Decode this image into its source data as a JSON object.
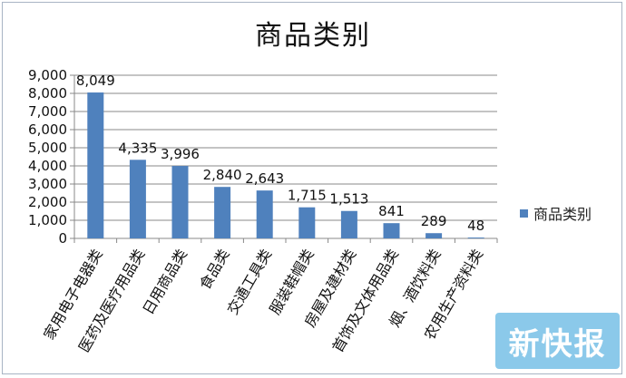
{
  "chart_data": {
    "type": "bar",
    "title": "商品类别",
    "categories": [
      "家用电子电器类",
      "医药及医疗用品类",
      "日用商品类",
      "食品类",
      "交通工具类",
      "服装鞋帽类",
      "房屋及建材类",
      "首饰及文体用品类",
      "烟、酒饮料类",
      "农用生产资料类"
    ],
    "series": [
      {
        "name": "商品类别",
        "values": [
          8049,
          4335,
          3996,
          2840,
          2643,
          1715,
          1513,
          841,
          289,
          48
        ],
        "labels": [
          "8,049",
          "4,335",
          "3,996",
          "2,840",
          "2,643",
          "1,715",
          "1,513",
          "841",
          "289",
          "48"
        ]
      }
    ],
    "ylim": [
      0,
      9000
    ],
    "yticks": [
      0,
      1000,
      2000,
      3000,
      4000,
      5000,
      6000,
      7000,
      8000,
      9000
    ],
    "ytick_labels": [
      "0",
      "1,000",
      "2,000",
      "3,000",
      "4,000",
      "5,000",
      "6,000",
      "7,000",
      "8,000",
      "9,000"
    ],
    "grid": true,
    "legend_position": "right",
    "colors": {
      "bar": "#4f81bd",
      "grid": "#888888",
      "axis": "#888888"
    }
  },
  "watermark": {
    "text": "新快报",
    "color": "#8bc9ea"
  }
}
